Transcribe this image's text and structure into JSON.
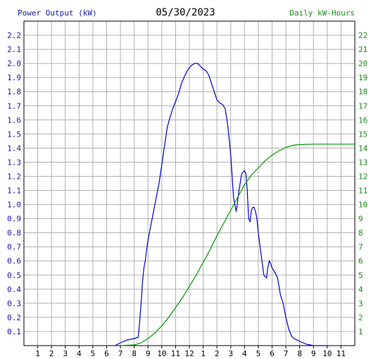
{
  "header": {
    "left_title": "Power Output (kW)",
    "date": "05/30/2023",
    "right_title": "Daily kW-Hours"
  },
  "colors": {
    "power": "#0000cc",
    "energy": "#009900",
    "grid": "#b0b0b0",
    "left_axis_text": "#1a1aa6",
    "right_axis_text": "#1e8a1e"
  },
  "chart_data": {
    "type": "line",
    "title": "05/30/2023",
    "xlabel": "",
    "ylabel": "Power Output (kW)",
    "y2label": "Daily kW-Hours",
    "xlim": [
      0,
      24
    ],
    "ylim": [
      0,
      2.3
    ],
    "y2lim": [
      0,
      23
    ],
    "grid": true,
    "x_ticks": [
      "1",
      "2",
      "3",
      "4",
      "5",
      "6",
      "7",
      "8",
      "9",
      "10",
      "11",
      "12",
      "1",
      "2",
      "3",
      "4",
      "5",
      "6",
      "7",
      "8",
      "9",
      "10",
      "11"
    ],
    "y_ticks": [
      "0.1",
      "0.2",
      "0.3",
      "0.4",
      "0.5",
      "0.6",
      "0.7",
      "0.8",
      "0.9",
      "1.0",
      "1.1",
      "1.2",
      "1.3",
      "1.4",
      "1.5",
      "1.6",
      "1.7",
      "1.8",
      "1.9",
      "2.0",
      "2.1",
      "2.2"
    ],
    "y2_ticks": [
      "1",
      "2",
      "3",
      "4",
      "5",
      "6",
      "7",
      "8",
      "9",
      "10",
      "11",
      "12",
      "13",
      "14",
      "15",
      "16",
      "17",
      "18",
      "19",
      "20",
      "21",
      "22"
    ],
    "series": [
      {
        "name": "Power Output (kW)",
        "axis": "left",
        "x": [
          6.6,
          7.0,
          7.5,
          8.0,
          8.3,
          8.5,
          8.6,
          8.7,
          8.8,
          8.9,
          9.0,
          9.2,
          9.4,
          9.6,
          9.8,
          10.0,
          10.2,
          10.4,
          10.6,
          10.8,
          11.0,
          11.2,
          11.4,
          11.6,
          11.8,
          12.0,
          12.2,
          12.4,
          12.6,
          12.8,
          13.0,
          13.2,
          13.4,
          13.6,
          13.8,
          14.0,
          14.2,
          14.4,
          14.6,
          14.8,
          15.0,
          15.2,
          15.4,
          15.6,
          15.8,
          16.0,
          16.1,
          16.2,
          16.3,
          16.4,
          16.5,
          16.6,
          16.7,
          16.8,
          16.9,
          17.0,
          17.2,
          17.4,
          17.6,
          17.7,
          17.8,
          17.9,
          18.0,
          18.2,
          18.4,
          18.6,
          18.8,
          19.0,
          19.2,
          19.4,
          19.6,
          19.8,
          20.0,
          20.5,
          21.0,
          21.5,
          22.0
        ],
        "y": [
          0.0,
          0.02,
          0.04,
          0.05,
          0.06,
          0.3,
          0.45,
          0.55,
          0.6,
          0.68,
          0.75,
          0.85,
          0.95,
          1.05,
          1.15,
          1.28,
          1.42,
          1.55,
          1.62,
          1.68,
          1.73,
          1.78,
          1.85,
          1.9,
          1.94,
          1.97,
          1.99,
          2.0,
          2.0,
          1.98,
          1.96,
          1.95,
          1.92,
          1.86,
          1.8,
          1.74,
          1.72,
          1.71,
          1.68,
          1.55,
          1.35,
          1.05,
          0.95,
          1.1,
          1.22,
          1.24,
          1.22,
          1.1,
          0.9,
          0.88,
          0.96,
          0.98,
          0.98,
          0.95,
          0.9,
          0.8,
          0.65,
          0.5,
          0.48,
          0.56,
          0.6,
          0.58,
          0.55,
          0.52,
          0.48,
          0.36,
          0.3,
          0.2,
          0.12,
          0.07,
          0.05,
          0.04,
          0.03,
          0.01,
          0.0,
          0.0,
          0.0
        ]
      },
      {
        "name": "Daily kW-Hours",
        "axis": "right",
        "x": [
          7.0,
          8.0,
          8.5,
          9.0,
          9.5,
          10.0,
          10.5,
          11.0,
          11.5,
          12.0,
          12.5,
          13.0,
          13.5,
          14.0,
          14.5,
          15.0,
          15.5,
          16.0,
          16.5,
          17.0,
          17.5,
          18.0,
          18.5,
          19.0,
          19.5,
          20.0,
          21.0,
          22.0,
          24.0
        ],
        "y": [
          0.0,
          0.05,
          0.2,
          0.5,
          0.9,
          1.4,
          2.0,
          2.7,
          3.4,
          4.2,
          5.0,
          5.9,
          6.8,
          7.8,
          8.7,
          9.6,
          10.5,
          11.4,
          12.1,
          12.6,
          13.1,
          13.5,
          13.8,
          14.05,
          14.2,
          14.25,
          14.28,
          14.28,
          14.28
        ]
      }
    ]
  }
}
